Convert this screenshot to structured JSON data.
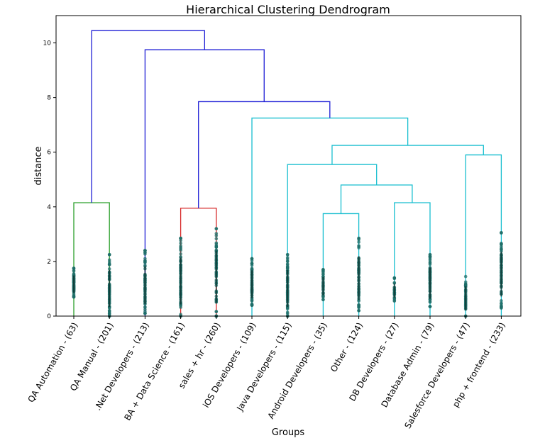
{
  "chart_data": {
    "type": "dendrogram",
    "title": "Hierarchical Clustering Dendrogram",
    "xlabel": "Groups",
    "ylabel": "distance",
    "ylim": [
      0,
      11
    ],
    "yticks": [
      0,
      2,
      4,
      6,
      8,
      10
    ],
    "grid": false,
    "colors": {
      "green": "#2ca02c",
      "red": "#d62728",
      "cyan": "#17becf",
      "blue": "#1f1fd6"
    },
    "leaves": [
      {
        "label": "QA Automation - (63)",
        "count": 63,
        "color": "#2ca02c",
        "min": 0.7,
        "max": 1.75
      },
      {
        "label": "QA Manual - (201)",
        "count": 201,
        "color": "#2ca02c",
        "min": 0.0,
        "max": 2.25
      },
      {
        "label": ".Net Developers - (213)",
        "count": 213,
        "color": "#1f1fd6",
        "min": 0.1,
        "max": 2.4
      },
      {
        "label": "BA + Data Science - (161)",
        "count": 161,
        "color": "#d62728",
        "min": 0.0,
        "max": 2.85
      },
      {
        "label": "sales + hr - (260)",
        "count": 260,
        "color": "#d62728",
        "min": 0.0,
        "max": 3.2
      },
      {
        "label": "iOS Developers - (109)",
        "count": 109,
        "color": "#17becf",
        "min": 0.4,
        "max": 2.1
      },
      {
        "label": "Java Developers - (115)",
        "count": 115,
        "color": "#17becf",
        "min": 0.0,
        "max": 2.25
      },
      {
        "label": "Android Developers - (35)",
        "count": 35,
        "color": "#17becf",
        "min": 0.6,
        "max": 1.7
      },
      {
        "label": "Other - (124)",
        "count": 124,
        "color": "#17becf",
        "min": 0.2,
        "max": 2.85
      },
      {
        "label": "DB Developers - (27)",
        "count": 27,
        "color": "#17becf",
        "min": 0.55,
        "max": 1.4
      },
      {
        "label": "Database Admin - (79)",
        "count": 79,
        "color": "#17becf",
        "min": 0.35,
        "max": 2.25
      },
      {
        "label": "Salesforce Developers - (47)",
        "count": 47,
        "color": "#17becf",
        "min": 0.0,
        "max": 1.45
      },
      {
        "label": "php + frontend - (233)",
        "count": 233,
        "color": "#17becf",
        "min": 0.3,
        "max": 3.05
      }
    ],
    "merges": [
      {
        "left": "leaf:0",
        "right": "leaf:1",
        "height": 4.15,
        "color": "#2ca02c"
      },
      {
        "left": "leaf:3",
        "right": "leaf:4",
        "height": 3.95,
        "color": "#d62728"
      },
      {
        "left": "leaf:7",
        "right": "leaf:8",
        "height": 3.75,
        "color": "#17becf"
      },
      {
        "left": "leaf:9",
        "right": "leaf:10",
        "height": 4.15,
        "color": "#17becf"
      },
      {
        "left": "merge:2",
        "right": "merge:3",
        "height": 4.8,
        "color": "#17becf"
      },
      {
        "left": "leaf:6",
        "right": "merge:4",
        "height": 5.55,
        "color": "#17becf"
      },
      {
        "left": "leaf:11",
        "right": "leaf:12",
        "height": 5.9,
        "color": "#17becf"
      },
      {
        "left": "merge:5",
        "right": "merge:6",
        "height": 6.25,
        "color": "#17becf"
      },
      {
        "left": "leaf:5",
        "right": "merge:7",
        "height": 7.25,
        "color": "#17becf"
      },
      {
        "left": "merge:1",
        "right": "merge:8",
        "height": 7.85,
        "color": "#1f1fd6"
      },
      {
        "left": "leaf:2",
        "right": "merge:9",
        "height": 9.75,
        "color": "#1f1fd6"
      },
      {
        "left": "merge:0",
        "right": "merge:10",
        "height": 10.45,
        "color": "#1f1fd6"
      }
    ]
  }
}
